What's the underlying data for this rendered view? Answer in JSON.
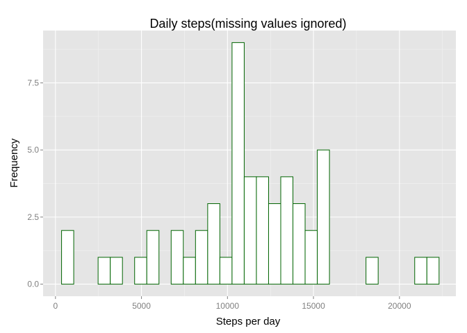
{
  "chart_data": {
    "type": "bar",
    "title": "Daily steps(missing values ignored)",
    "xlabel": "Steps per day",
    "ylabel": "Frequency",
    "xlim": [
      -720,
      23280
    ],
    "ylim": [
      -0.45,
      9.45
    ],
    "x_ticks": [
      0,
      5000,
      10000,
      15000,
      20000
    ],
    "x_tick_labels": [
      "0",
      "5000",
      "10000",
      "15000",
      "20000"
    ],
    "y_ticks": [
      0,
      2.5,
      5,
      7.5
    ],
    "y_tick_labels": [
      "0.0",
      "2.5",
      "5.0",
      "7.5"
    ],
    "bin_start": -354,
    "bin_width": 708,
    "values": [
      0,
      2,
      0,
      0,
      1,
      1,
      0,
      1,
      2,
      0,
      2,
      1,
      2,
      3,
      1,
      9,
      4,
      4,
      3,
      4,
      3,
      2,
      5,
      0,
      0,
      0,
      1,
      0,
      0,
      0,
      1,
      1
    ],
    "grid": true,
    "colors": {
      "panel": "#e5e5e5",
      "grid_major": "#ffffff",
      "grid_minor": "#f2f2f2",
      "bar_fill": "#ffffff",
      "bar_outline": "#006400"
    }
  }
}
